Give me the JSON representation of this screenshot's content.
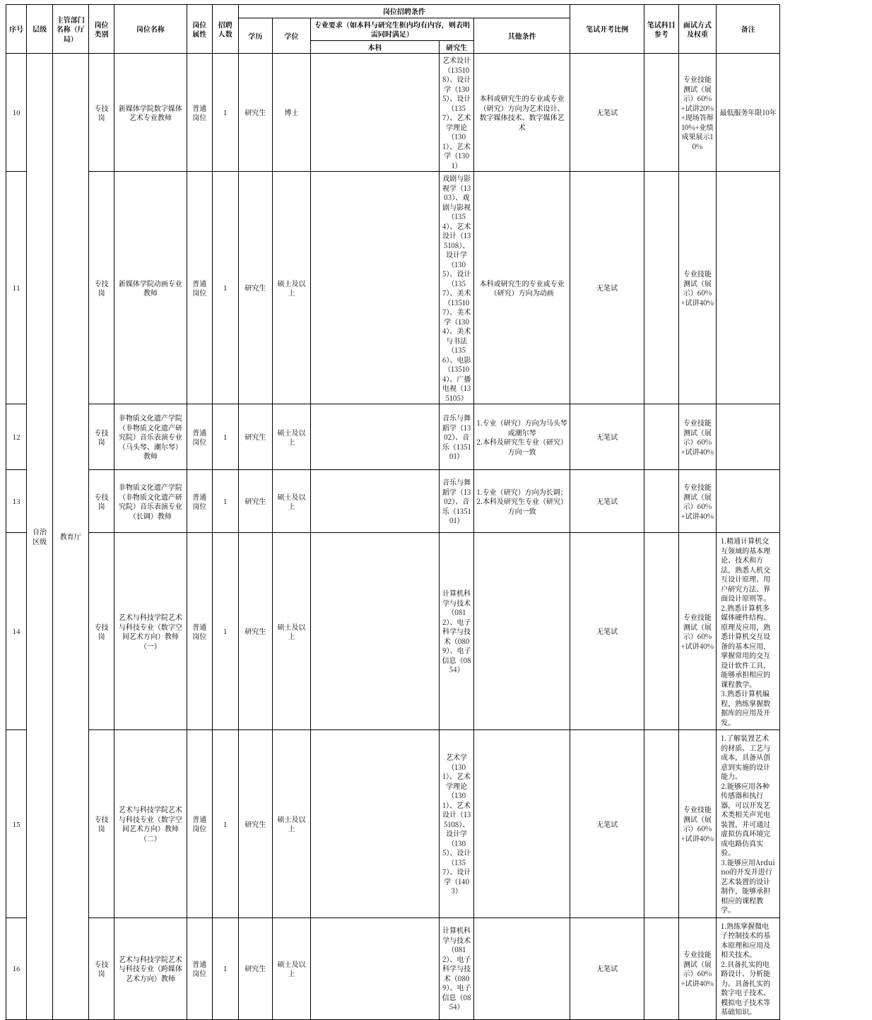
{
  "table": {
    "columns": {
      "widths_pct": [
        2.4,
        3.0,
        4.2,
        3.0,
        8.4,
        3.0,
        3.0,
        4.0,
        4.4,
        15.0,
        4.0,
        11.2,
        8.6,
        4.0,
        4.4,
        7.4,
        10.0
      ],
      "header": {
        "c1": "序号",
        "c2": "层级",
        "c3": "主管部门名称（厅局）",
        "c4": "岗位类别",
        "c5": "岗位名称",
        "c6": "岗位属性",
        "c7": "招聘人数",
        "c8_group": "岗位招聘条件",
        "c8a": "学历",
        "c8b": "学位",
        "c8c_group": "专业要求（如本科与研究生框内均有内容，则表明需同时满足）",
        "c8c1": "本科",
        "c8c2": "研究生",
        "c8d": "其他条件",
        "c9": "笔试开考比例",
        "c10": "笔试科目参考",
        "c11": "面试方式及权重",
        "c12": "备注"
      }
    },
    "shared": {
      "level": "自治区级",
      "dept": "教育厅",
      "post_cat": "专技岗",
      "post_attr": "普通岗位",
      "num": "1",
      "edu": "研究生",
      "exam_ratio": "无笔试",
      "subject": ""
    },
    "rows": [
      {
        "no": "10",
        "name": "新媒体学院数字媒体艺术专业教师",
        "degree": "博士",
        "grad": "艺术设计（135108）、设计学（1305）、设计（1357）、艺术学理论（1301）、艺术学（1301）",
        "other": "本科或研究生的专业或专业（研究）方向为艺术设计、数字媒体技术、数字媒体艺术",
        "interview": "专业技能测试（展示）60%+试讲20%+现场答辩10%+业绩成果展示10%",
        "remark": [
          "最低服务年限10年"
        ],
        "remark_align": "center"
      },
      {
        "no": "11",
        "name": "新媒体学院动画专业教师",
        "degree": "硕士及以上",
        "grad": "戏剧与影视学（1303）、戏剧与影视（1354）、艺术设计（135108）、设计学（1305）、设计（1357）、美术（135107）、美术学（1304）、美术与书法（1356）、电影（135104）、广播电视（135105）",
        "other": "本科或研究生的专业或专业（研究）方向为动画",
        "interview": "专业技能测试（展示）60%+试讲40%",
        "remark": [],
        "remark_align": "left"
      },
      {
        "no": "12",
        "name": "非物质文化遗产学院（非物质文化遗产研究院）音乐表演专业（马头琴、潮尔琴）教师",
        "degree": "硕士及以上",
        "grad": "音乐与舞蹈学（1302）、音乐（135101）",
        "other": "1.专业（研究）方向为马头琴或潮尔琴\n2.本科及研究生专业（研究）方向一致",
        "interview": "专业技能测试（展示）60%+试讲40%",
        "remark": [],
        "remark_align": "left"
      },
      {
        "no": "13",
        "name": "非物质文化遗产学院（非物质文化遗产研究院）音乐表演专业（长调）教师",
        "degree": "硕士及以上",
        "grad": "音乐与舞蹈学（1302）、音乐（135101）",
        "other": "1.专业（研究）方向为长调；2.本科及研究生专业（研究）方向一致",
        "interview": "专业技能测试（展示）60%+试讲40%",
        "remark": [],
        "remark_align": "left"
      },
      {
        "no": "14",
        "name": "艺术与科技学院艺术与科技专业（数字空间艺术方向）教师（一）",
        "degree": "硕士及以上",
        "grad": "计算机科学与技术（0812）、电子科学与技术（0809）、电子信息（0854）",
        "other": "",
        "interview": "专业技能测试（展示）60%+试讲40%",
        "remark": [
          "1.精通计算机交互领域的基本理论、技术和方法，熟悉人机交互设计原理、用户研究方法、界面设计原则等。",
          "2.熟悉计算机多媒体硬件结构、原理及应用，熟悉计算机交互设备的基本应用，掌握常用的交互设计软件工具，能够承担相应的课程教学。",
          "3.熟悉计算机编程，熟练掌握数据库的应用及开发。"
        ],
        "remark_align": "left"
      },
      {
        "no": "15",
        "name": "艺术与科技学院艺术与科技专业（数字空间艺术方向）教师（二）",
        "degree": "硕士及以上",
        "grad": "艺术学（1301）、艺术学理论（1301）、艺术设计（135108）、设计学（1305）、设计（1357）、设计学（1403）",
        "other": "",
        "interview": "专业技能测试（展示）60%+试讲40%",
        "remark": [
          "1.了解装置艺术的材质、工艺与成本，具备从创意到实施的设计能力。",
          "2.能够应用各种传感器和执行器，可以开发艺术类相关声光电装置，并可通过虚拟仿真环境完成电路仿真实验。",
          "3.能够应用Arduino的开发并进行艺术装置的设计制作，能够承担相应的课程教学。"
        ],
        "remark_align": "left"
      },
      {
        "no": "16",
        "name": "艺术与科技学院艺术与科技专业（跨媒体艺术方向）教师",
        "degree": "硕士及以上",
        "grad": "计算机科学与技术（0812）、电子科学与技术（0809）、电子信息（0854）",
        "other": "",
        "interview": "专业技能测试（展示）60%+试讲40%",
        "remark": [
          "1.熟练掌握微电子控制技术的基本原理和应用及相关技术。",
          "2.具备扎实的电路设计、分析能力。具备扎实的数字电子技术、模拟电子技术等基础知识。"
        ],
        "remark_align": "left"
      }
    ]
  }
}
